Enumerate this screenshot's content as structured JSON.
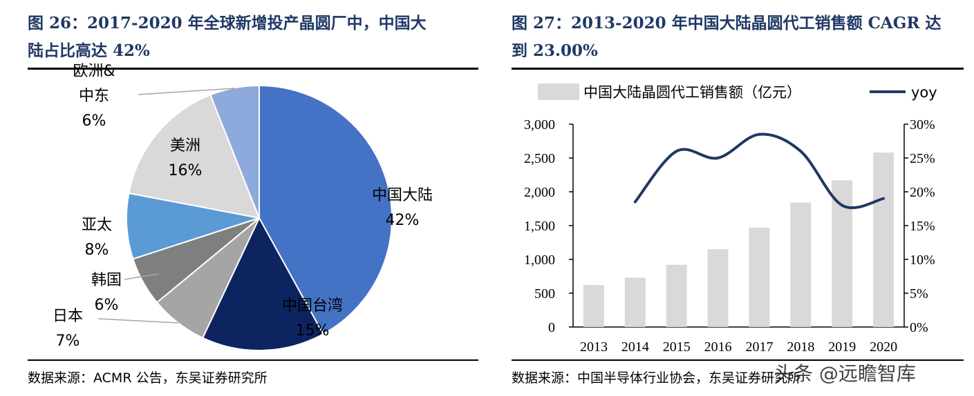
{
  "left": {
    "title_line1": "图 26：2017-2020 年全球新增投产晶圆厂中，中国大",
    "title_line2": "陆占比高达 42%",
    "source": "数据来源：ACMR 公告，东吴证券研究所"
  },
  "right": {
    "title_line1": "图 27：2013-2020 年中国大陆晶圆代工销售额 CAGR 达",
    "title_line2": "到 23.00%",
    "source": "数据来源：中国半导体行业协会，东吴证券研究所"
  },
  "watermark": "头条 @远瞻智库",
  "chart_data": [
    {
      "type": "pie",
      "start_angle_deg": 0,
      "direction": "clockwise",
      "slices": [
        {
          "name": "中国大陆",
          "value": 42,
          "label": "42%",
          "color": "#4472C4"
        },
        {
          "name": "中国台湾",
          "value": 15,
          "label": "15%",
          "color": "#0E2461"
        },
        {
          "name": "日本",
          "value": 7,
          "label": "7%",
          "color": "#A5A5A5"
        },
        {
          "name": "韩国",
          "value": 6,
          "label": "6%",
          "color": "#7F7F7F"
        },
        {
          "name": "亚太",
          "value": 8,
          "label": "8%",
          "color": "#5B9BD5"
        },
        {
          "name": "美洲",
          "value": 16,
          "label": "16%",
          "color": "#D9D9D9"
        },
        {
          "name": "欧洲&中东",
          "value": 6,
          "label": "6%",
          "color": "#8EA9DB"
        }
      ]
    },
    {
      "type": "bar",
      "categories": [
        "2013",
        "2014",
        "2015",
        "2016",
        "2017",
        "2018",
        "2019",
        "2020"
      ],
      "series": [
        {
          "name": "中国大陆晶圆代工销售额（亿元）",
          "kind": "bar",
          "axis": "left",
          "color": "#D9D9D9",
          "values": [
            620,
            730,
            920,
            1150,
            1470,
            1840,
            2170,
            2580
          ]
        },
        {
          "name": "yoy",
          "kind": "line",
          "axis": "right",
          "color": "#1F3864",
          "values": [
            null,
            0.185,
            0.26,
            0.25,
            0.285,
            0.26,
            0.18,
            0.19
          ]
        }
      ],
      "ylim": [
        0,
        3000
      ],
      "yticks": [
        "0",
        "500",
        "1,000",
        "1,500",
        "2,000",
        "2,500",
        "3,000"
      ],
      "y2lim": [
        0,
        0.3
      ],
      "y2ticks": [
        "0%",
        "5%",
        "10%",
        "15%",
        "20%",
        "25%",
        "30%"
      ],
      "legend_position": "top"
    }
  ]
}
